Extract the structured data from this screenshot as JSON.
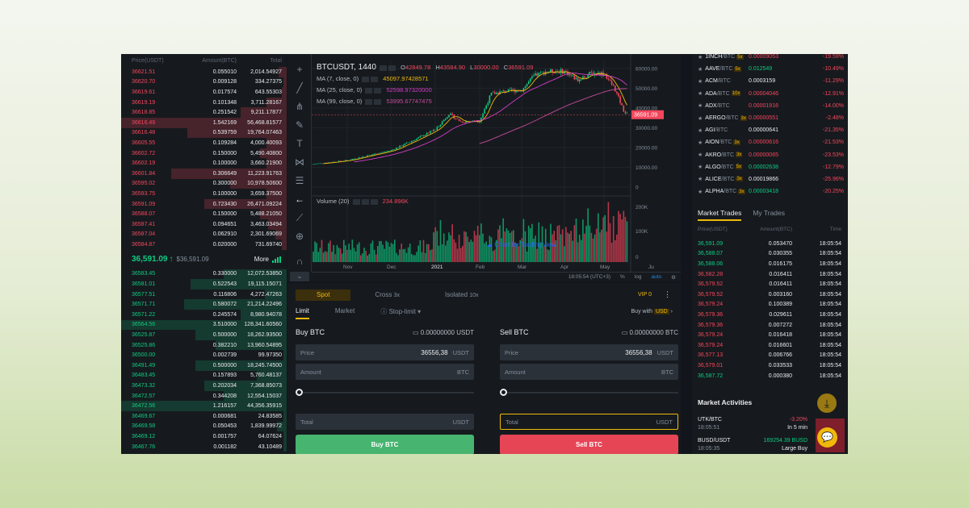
{
  "orderbook": {
    "headers": {
      "price": "Price(USDT)",
      "amount": "Amount(BTC)",
      "total": "Total"
    },
    "asks": [
      {
        "price": "36621.51",
        "amount": "0.055010",
        "total": "2,014.54927",
        "depth": 0.05
      },
      {
        "price": "36620.70",
        "amount": "0.009128",
        "total": "334.27375",
        "depth": 0.02
      },
      {
        "price": "36619.61",
        "amount": "0.017574",
        "total": "643.55303",
        "depth": 0.03
      },
      {
        "price": "36619.19",
        "amount": "0.101348",
        "total": "3,711.28167",
        "depth": 0.12
      },
      {
        "price": "36618.85",
        "amount": "0.251542",
        "total": "9,211.17877",
        "depth": 0.28
      },
      {
        "price": "36616.49",
        "amount": "1.542169",
        "total": "56,468.81577",
        "depth": 1.0
      },
      {
        "price": "36616.48",
        "amount": "0.539759",
        "total": "19,764.07463",
        "depth": 0.6
      },
      {
        "price": "36605.55",
        "amount": "0.109284",
        "total": "4,000.40093",
        "depth": 0.12
      },
      {
        "price": "36602.72",
        "amount": "0.150000",
        "total": "5,490.40800",
        "depth": 0.16
      },
      {
        "price": "36602.19",
        "amount": "0.100000",
        "total": "3,660.21900",
        "depth": 0.12
      },
      {
        "price": "36601.84",
        "amount": "0.306649",
        "total": "11,223.91763",
        "depth": 0.7
      },
      {
        "price": "36595.02",
        "amount": "0.300000",
        "total": "10,978.50600",
        "depth": 0.34
      },
      {
        "price": "36593.75",
        "amount": "0.100000",
        "total": "3,659.37500",
        "depth": 0.12
      },
      {
        "price": "36591.09",
        "amount": "0.723430",
        "total": "26,471.09224",
        "depth": 0.5
      },
      {
        "price": "36588.07",
        "amount": "0.150000",
        "total": "5,488.21050",
        "depth": 0.16
      },
      {
        "price": "36587.41",
        "amount": "0.094651",
        "total": "3,463.03494",
        "depth": 0.11
      },
      {
        "price": "36587.04",
        "amount": "0.062910",
        "total": "2,301.69069",
        "depth": 0.07
      },
      {
        "price": "36584.87",
        "amount": "0.020000",
        "total": "731.69740",
        "depth": 0.03
      }
    ],
    "mid": {
      "last": "36,591.09",
      "arrow": "↑",
      "mark": "$36,591.09",
      "more": "More"
    },
    "bids": [
      {
        "price": "36583.45",
        "amount": "0.330000",
        "total": "12,072.53850",
        "depth": 0.38
      },
      {
        "price": "36581.01",
        "amount": "0.522543",
        "total": "19,115.15071",
        "depth": 0.58
      },
      {
        "price": "36577.51",
        "amount": "0.116806",
        "total": "4,272.47263",
        "depth": 0.13
      },
      {
        "price": "36571.71",
        "amount": "0.580072",
        "total": "21,214.22496",
        "depth": 0.62
      },
      {
        "price": "36571.22",
        "amount": "0.245574",
        "total": "8,980.94078",
        "depth": 0.28
      },
      {
        "price": "36564.56",
        "amount": "3.510000",
        "total": "128,341.60560",
        "depth": 1.0
      },
      {
        "price": "36525.87",
        "amount": "0.500000",
        "total": "18,262.93500",
        "depth": 0.55
      },
      {
        "price": "36525.86",
        "amount": "0.382210",
        "total": "13,960.54895",
        "depth": 0.43
      },
      {
        "price": "36500.00",
        "amount": "0.002739",
        "total": "99.97350",
        "depth": 0.02
      },
      {
        "price": "36491.49",
        "amount": "0.500000",
        "total": "18,245.74500",
        "depth": 0.55
      },
      {
        "price": "36483.45",
        "amount": "0.157893",
        "total": "5,760.48137",
        "depth": 0.18
      },
      {
        "price": "36473.32",
        "amount": "0.202034",
        "total": "7,368.85073",
        "depth": 0.5
      },
      {
        "price": "36472.57",
        "amount": "0.344208",
        "total": "12,554.15037",
        "depth": 0.38
      },
      {
        "price": "36472.56",
        "amount": "1.216157",
        "total": "44,356.35915",
        "depth": 1.0
      },
      {
        "price": "36469.67",
        "amount": "0.000681",
        "total": "24.83585",
        "depth": 0.02
      },
      {
        "price": "36469.58",
        "amount": "0.050453",
        "total": "1,839.99972",
        "depth": 0.06
      },
      {
        "price": "36469.12",
        "amount": "0.001757",
        "total": "64.07624",
        "depth": 0.02
      },
      {
        "price": "36467.76",
        "amount": "0.001182",
        "total": "43.10489",
        "depth": 0.02
      }
    ]
  },
  "chart": {
    "symbol": "BTCUSDT, 1440",
    "ohlc": {
      "o_label": "O",
      "o": "42849.78",
      "h_label": "H",
      "h": "43584.90",
      "l_label": "L",
      "l": "30000.00",
      "c_label": "C",
      "c": "36591.09"
    },
    "ma7": {
      "label": "MA (7, close, 0)",
      "value": "45097.97428571",
      "color": "#f0b90b"
    },
    "ma25": {
      "label": "MA (25, close, 0)",
      "value": "52598.97320000",
      "color": "#d63cc8"
    },
    "ma99": {
      "label": "MA (99, close, 0)",
      "value": "53995.67747475",
      "color": "#c94a9e"
    },
    "volume": {
      "label": "Volume (20)",
      "value": "234.896K"
    },
    "price_axis": [
      "60000.00",
      "50000.00",
      "40000.00",
      "30000.00",
      "20000.00",
      "10000.00",
      "0"
    ],
    "last_price_tag": "36591.09",
    "volume_axis": [
      "200K",
      "100K",
      "0"
    ],
    "time_axis": [
      "Nov",
      "Dec",
      "2021",
      "Feb",
      "Mar",
      "Apr",
      "May",
      "Ju"
    ],
    "watermark": "Chart by TradingView",
    "bottom": {
      "clock": "18:05:54 (UTC+3)",
      "percent": "%",
      "log": "log",
      "auto": "auto"
    },
    "colors": {
      "up": "#0ecb81",
      "down": "#f6465d"
    },
    "chart_data": {
      "type": "line",
      "title": "BTCUSDT, 1440",
      "xlabel": "",
      "ylabel": "",
      "x": [
        "Nov",
        "Dec",
        "2021",
        "Feb",
        "Mar",
        "Apr",
        "May"
      ],
      "series": [
        {
          "values": [
            13500,
            18500,
            29000,
            33500,
            49000,
            58500,
            57500
          ]
        }
      ],
      "ylim": [
        0,
        64000
      ]
    }
  },
  "trade": {
    "tabs": [
      "Spot",
      "Cross",
      "Isolated"
    ],
    "cross_lev": "3x",
    "iso_lev": "10x",
    "vip": "VIP 0",
    "order_types": [
      "Limit",
      "Market",
      "Stop-limit"
    ],
    "buy_with": "Buy with",
    "buy_with_currency": "USD",
    "buy": {
      "title": "Buy BTC",
      "balance": "0.00000000 USDT",
      "price_label": "Price",
      "price_value": "36556,38",
      "price_unit": "USDT",
      "amount_label": "Amount",
      "amount_unit": "BTC",
      "total_label": "Total",
      "total_unit": "USDT",
      "button": "Buy BTC"
    },
    "sell": {
      "title": "Sell BTC",
      "balance": "0.00000000 BTC",
      "price_label": "Price",
      "price_value": "36556,38",
      "price_unit": "USDT",
      "amount_label": "Amount",
      "amount_unit": "BTC",
      "total_label": "Total",
      "total_unit": "USDT",
      "button": "Sell BTC"
    }
  },
  "pairs": [
    {
      "sym": "1INCH",
      "quote": "/BTC",
      "lev": "5x",
      "price": "0.00009053",
      "change": "-19.59%",
      "up": false
    },
    {
      "sym": "AAVE",
      "quote": "/BTC",
      "lev": "5x",
      "price": "0.012549",
      "change": "-10.49%",
      "up": true
    },
    {
      "sym": "ACM",
      "quote": "/BTC",
      "lev": "",
      "price": "0.0003159",
      "change": "-11.29%",
      "up": null
    },
    {
      "sym": "ADA",
      "quote": "/BTC",
      "lev": "10x",
      "price": "0.00004046",
      "change": "-12.91%",
      "up": false
    },
    {
      "sym": "ADX",
      "quote": "/BTC",
      "lev": "",
      "price": "0.00001916",
      "change": "-14.00%",
      "up": false
    },
    {
      "sym": "AERGO",
      "quote": "/BTC",
      "lev": "3x",
      "price": "0.00000551",
      "change": "-2.48%",
      "up": false
    },
    {
      "sym": "AGI",
      "quote": "/BTC",
      "lev": "",
      "price": "0.00000641",
      "change": "-21.35%",
      "up": null
    },
    {
      "sym": "AION",
      "quote": "/BTC",
      "lev": "3x",
      "price": "0.00000616",
      "change": "-21.53%",
      "up": false
    },
    {
      "sym": "AKRO",
      "quote": "/BTC",
      "lev": "3x",
      "price": "0.00000065",
      "change": "-23.53%",
      "up": false
    },
    {
      "sym": "ALGO",
      "quote": "/BTC",
      "lev": "5x",
      "price": "0.00002638",
      "change": "-12.79%",
      "up": true
    },
    {
      "sym": "ALICE",
      "quote": "/BTC",
      "lev": "3x",
      "price": "0.00019866",
      "change": "-25.96%",
      "up": null
    },
    {
      "sym": "ALPHA",
      "quote": "/BTC",
      "lev": "3x",
      "price": "0.00003418",
      "change": "-20.25%",
      "up": true
    }
  ],
  "market_trades": {
    "tabs": [
      "Market Trades",
      "My Trades"
    ],
    "headers": {
      "price": "Price(USDT)",
      "amount": "Amount(BTC)",
      "time": "Time"
    },
    "rows": [
      {
        "price": "36,591.09",
        "amount": "0.053470",
        "time": "18:05:54",
        "up": true
      },
      {
        "price": "36,588.07",
        "amount": "0.030355",
        "time": "18:05:54",
        "up": true
      },
      {
        "price": "36,588.06",
        "amount": "0.016175",
        "time": "18:05:54",
        "up": true
      },
      {
        "price": "36,582.28",
        "amount": "0.016411",
        "time": "18:05:54",
        "up": false
      },
      {
        "price": "36,579.52",
        "amount": "0.016411",
        "time": "18:05:54",
        "up": false
      },
      {
        "price": "36,579.52",
        "amount": "0.003160",
        "time": "18:05:54",
        "up": false
      },
      {
        "price": "36,579.24",
        "amount": "0.100389",
        "time": "18:05:54",
        "up": false
      },
      {
        "price": "36,579.36",
        "amount": "0.029611",
        "time": "18:05:54",
        "up": false
      },
      {
        "price": "36,579.36",
        "amount": "0.007272",
        "time": "18:05:54",
        "up": false
      },
      {
        "price": "36,579.24",
        "amount": "0.016418",
        "time": "18:05:54",
        "up": false
      },
      {
        "price": "36,579.24",
        "amount": "0.016601",
        "time": "18:05:54",
        "up": false
      },
      {
        "price": "36,577.13",
        "amount": "0.006766",
        "time": "18:05:54",
        "up": false
      },
      {
        "price": "36,579.01",
        "amount": "0.033533",
        "time": "18:05:54",
        "up": false
      },
      {
        "price": "36,587.72",
        "amount": "0.000380",
        "time": "18:05:54",
        "up": true
      }
    ]
  },
  "market_activities": {
    "title": "Market Activities",
    "items": [
      {
        "pair": "UTK/BTC",
        "time": "18:05:51",
        "value": "-3.20%",
        "desc": "In 5 min",
        "up": false
      },
      {
        "pair": "BUSD/USDT",
        "time": "18:05:35",
        "value": "169254.39 BUSD",
        "desc": "Large Buy",
        "up": true
      }
    ]
  }
}
